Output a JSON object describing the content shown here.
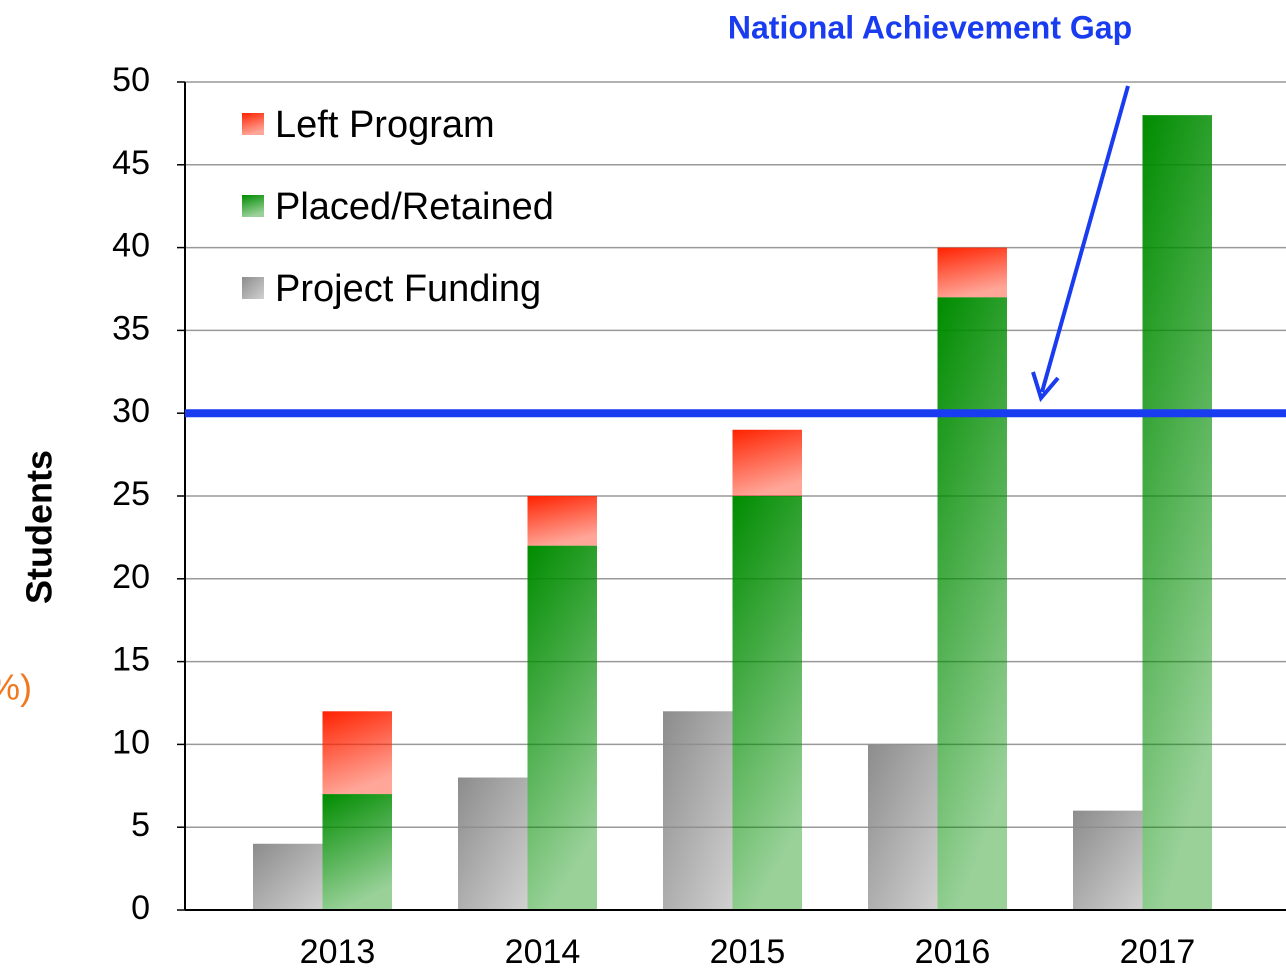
{
  "chart_data": {
    "type": "bar",
    "stacked": true,
    "y_label": "Students",
    "side_note": "%)",
    "categories": [
      "2013",
      "2014",
      "2015",
      "2016",
      "2017"
    ],
    "series": [
      {
        "name": "Project Funding",
        "color": "#8c8c8c",
        "values": [
          4,
          8,
          12,
          10,
          6
        ],
        "stack": "a"
      },
      {
        "name": "Placed/Retained",
        "color": "#008c00",
        "values": [
          7,
          22,
          25,
          37,
          48
        ],
        "stack": "b"
      },
      {
        "name": "Left Program",
        "color": "#ff2200",
        "values": [
          5,
          3,
          4,
          3,
          0
        ],
        "stack": "b"
      }
    ],
    "reference_line": {
      "value": 30,
      "label": "National Achievement Gap",
      "color": "#1a3cf0"
    },
    "ylim": [
      0,
      50
    ],
    "yticks": [
      0,
      5,
      10,
      15,
      20,
      25,
      30,
      35,
      40,
      45,
      50
    ],
    "grid": true,
    "legend": "upper left"
  }
}
